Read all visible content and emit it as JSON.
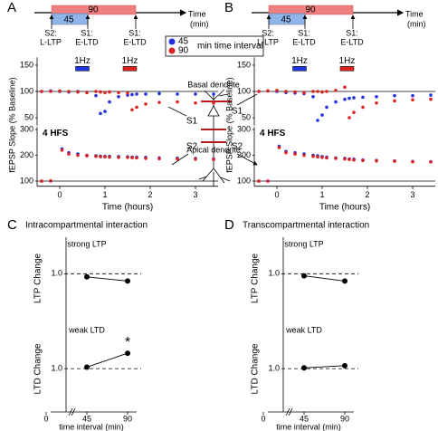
{
  "panel_a": {
    "letter": "A",
    "timeline": {
      "short": "45",
      "long": "90",
      "axis_label": [
        "Time",
        "(min)"
      ],
      "events": [
        {
          "site": "S2:",
          "label": "L-LTP"
        },
        {
          "site": "S1:",
          "label": "E-LTD"
        },
        {
          "site": "S1:",
          "label": "E-LTD"
        }
      ]
    },
    "y_label": "fEPSP Slope (% Baseline)",
    "top": {
      "type": "scatter",
      "stim_labels": [
        "1Hz",
        "1Hz"
      ],
      "x": [
        -0.4,
        -0.2,
        0,
        0.2,
        0.4,
        0.6,
        0.8,
        0.9,
        1.0,
        1.1,
        1.3,
        1.5,
        1.6,
        1.7,
        1.9,
        2.2,
        2.6,
        3.0,
        3.4
      ],
      "series": [
        {
          "color": "#2233dd",
          "values": [
            100,
            101,
            100,
            99,
            100,
            98,
            92,
            58,
            62,
            80,
            90,
            93,
            94,
            95,
            95,
            96,
            95,
            95,
            95
          ]
        },
        {
          "color": "#dd2222",
          "values": [
            100,
            100,
            101,
            100,
            99,
            98,
            100,
            99,
            98,
            99,
            98,
            97,
            65,
            70,
            76,
            79,
            80,
            78,
            78
          ]
        }
      ],
      "xlim": [
        -0.5,
        3.5
      ],
      "ylim": [
        35,
        165
      ],
      "yticks": [
        50,
        100,
        150
      ]
    },
    "bottom": {
      "type": "scatter",
      "label": "4 HFS",
      "x": [
        -0.4,
        -0.2,
        0.05,
        0.2,
        0.4,
        0.6,
        0.8,
        0.9,
        1.0,
        1.1,
        1.3,
        1.5,
        1.6,
        1.7,
        1.9,
        2.2,
        2.6,
        3.0,
        3.4
      ],
      "series": [
        {
          "color": "#2233dd",
          "values": [
            100,
            100,
            225,
            210,
            205,
            200,
            198,
            197,
            196,
            196,
            195,
            194,
            193,
            193,
            192,
            190,
            189,
            188,
            186
          ]
        },
        {
          "color": "#dd2222",
          "values": [
            100,
            101,
            220,
            205,
            200,
            198,
            196,
            195,
            194,
            193,
            192,
            192,
            191,
            190,
            188,
            187,
            186,
            185,
            184
          ]
        }
      ],
      "xlim": [
        -0.5,
        3.5
      ],
      "ylim": [
        80,
        310
      ],
      "yticks": [
        100,
        200,
        300
      ],
      "xticks": [
        0,
        1,
        2,
        3
      ],
      "x_label": "Time (hours)"
    }
  },
  "panel_b": {
    "letter": "B",
    "timeline": {
      "short": "45",
      "long": "90",
      "axis_label": [
        "Time",
        "(min)"
      ],
      "events": [
        {
          "site": "S2:",
          "label": "L-LTP"
        },
        {
          "site": "S1:",
          "label": "E-LTD"
        },
        {
          "site": "S1:",
          "label": "E-LTD"
        }
      ]
    },
    "y_label": "fEPSP Slope (% Baseline)",
    "top": {
      "type": "scatter",
      "stim_labels": [
        "1Hz",
        "1Hz"
      ],
      "x": [
        -0.4,
        -0.2,
        0,
        0.2,
        0.4,
        0.6,
        0.8,
        0.9,
        1.0,
        1.1,
        1.3,
        1.5,
        1.6,
        1.7,
        1.9,
        2.2,
        2.6,
        3.0,
        3.4
      ],
      "series": [
        {
          "color": "#2233dd",
          "values": [
            100,
            101,
            100,
            98,
            97,
            96,
            90,
            45,
            55,
            70,
            80,
            85,
            87,
            88,
            89,
            90,
            92,
            92,
            93
          ]
        },
        {
          "color": "#dd2222",
          "values": [
            100,
            101,
            102,
            100,
            99,
            98,
            100,
            100,
            99,
            100,
            102,
            108,
            50,
            60,
            70,
            78,
            82,
            84,
            85
          ]
        }
      ],
      "xlim": [
        -0.5,
        3.5
      ],
      "ylim": [
        35,
        165
      ],
      "yticks": [
        50,
        100,
        150
      ]
    },
    "bottom": {
      "type": "scatter",
      "label": "4 HFS",
      "x": [
        -0.4,
        -0.2,
        0.05,
        0.2,
        0.4,
        0.6,
        0.8,
        0.9,
        1.0,
        1.1,
        1.3,
        1.5,
        1.6,
        1.7,
        1.9,
        2.2,
        2.6,
        3.0,
        3.4
      ],
      "series": [
        {
          "color": "#2233dd",
          "values": [
            100,
            100,
            235,
            215,
            210,
            205,
            200,
            198,
            195,
            193,
            190,
            188,
            186,
            185,
            182,
            180,
            178,
            176,
            175
          ]
        },
        {
          "color": "#dd2222",
          "values": [
            100,
            100,
            230,
            210,
            205,
            200,
            196,
            194,
            192,
            190,
            188,
            186,
            184,
            182,
            180,
            178,
            177,
            175,
            174
          ]
        }
      ],
      "xlim": [
        -0.5,
        3.5
      ],
      "ylim": [
        80,
        310
      ],
      "yticks": [
        100,
        200,
        300
      ],
      "xticks": [
        0,
        1,
        2,
        3
      ],
      "x_label": "Time (hours)"
    }
  },
  "legend": {
    "entries": [
      {
        "name": "45",
        "color": "#2233dd"
      },
      {
        "name": "90",
        "color": "#dd2222"
      }
    ],
    "suffix": "min time interval"
  },
  "diagram": {
    "basal": "Basal dendrite",
    "apical": "Apical dendrite",
    "sites": [
      "S1",
      "S1",
      "S2",
      "S2"
    ]
  },
  "panel_c": {
    "letter": "C",
    "title": "Intracompartmental interaction",
    "x_label": "time interval (min)",
    "xticks": [
      0,
      45,
      90
    ],
    "xlim": [
      0,
      100
    ],
    "top": {
      "type": "line",
      "label": "strong LTP",
      "y_label": "LTP Change",
      "x": [
        45,
        90
      ],
      "values": [
        0.97,
        0.93
      ],
      "ylim": [
        0.63,
        1.28
      ],
      "yticks": [
        {
          "value": 1,
          "label": "1.0"
        }
      ]
    },
    "bottom": {
      "type": "line",
      "label": "weak LTD",
      "y_label": "LTD Change",
      "x": [
        45,
        90
      ],
      "values": [
        1.02,
        1.21
      ],
      "ylim": [
        0.47,
        1.52
      ],
      "yticks": [
        {
          "value": 1,
          "label": "1.0"
        }
      ],
      "annotation": {
        "x": 90,
        "text": "*"
      }
    }
  },
  "panel_d": {
    "letter": "D",
    "title": "Transcompartmental interaction",
    "x_label": "time interval (min)",
    "xticks": [
      0,
      45,
      90
    ],
    "xlim": [
      0,
      100
    ],
    "top": {
      "type": "line",
      "label": "strong LTP",
      "y_label": "LTP Change",
      "x": [
        45,
        90
      ],
      "values": [
        0.98,
        0.93
      ],
      "ylim": [
        0.63,
        1.28
      ],
      "yticks": [
        {
          "value": 1,
          "label": "1.0"
        }
      ]
    },
    "bottom": {
      "type": "line",
      "label": "weak LTD",
      "y_label": "LTD Change",
      "x": [
        45,
        90
      ],
      "values": [
        1.01,
        1.04
      ],
      "ylim": [
        0.47,
        1.52
      ],
      "yticks": [
        {
          "value": 1,
          "label": "1.0"
        }
      ]
    }
  }
}
